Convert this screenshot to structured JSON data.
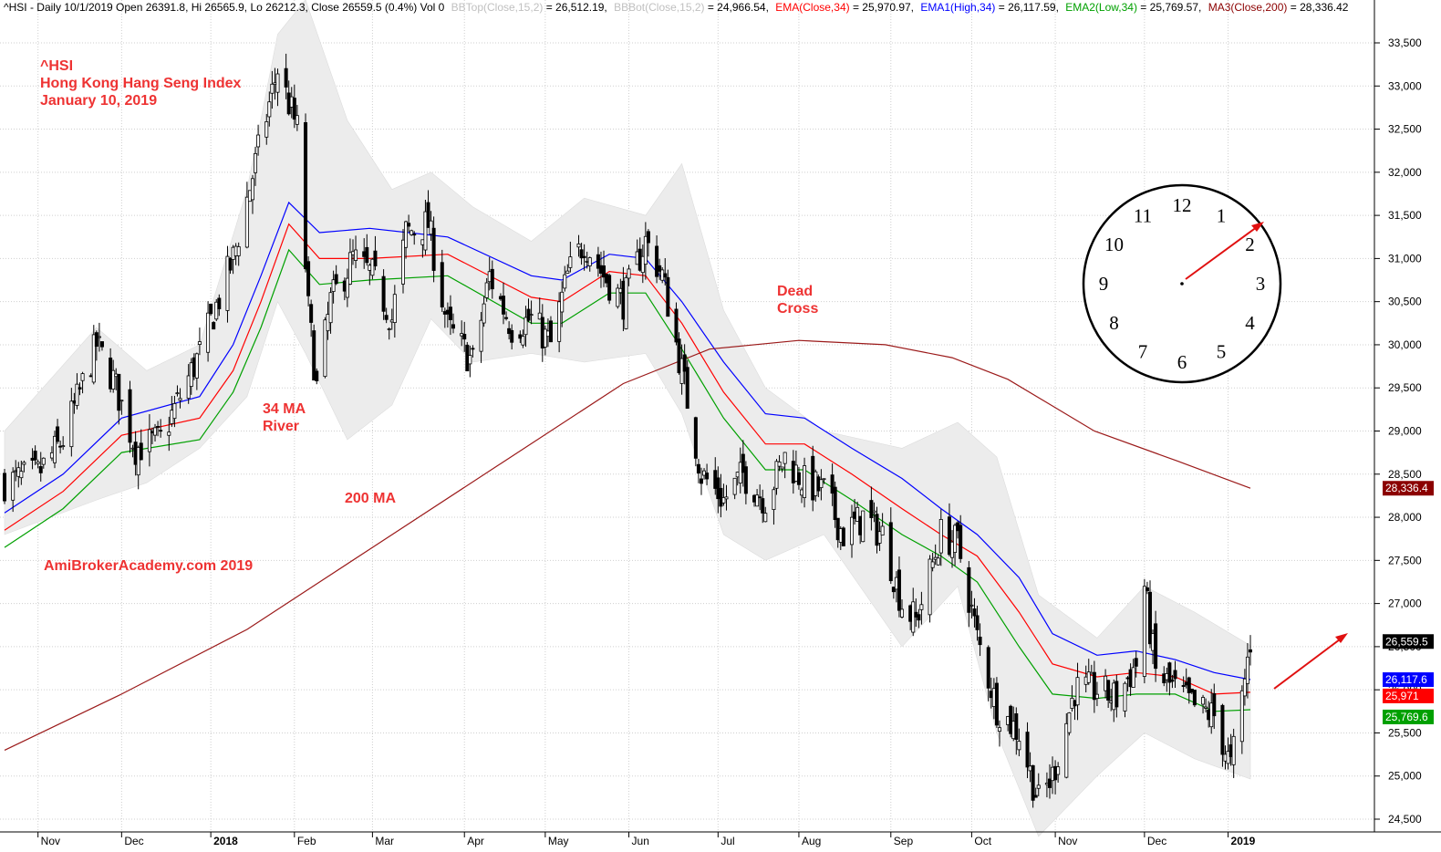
{
  "header": {
    "symbol_line": "^HSI - Daily 10/1/2019 Open 26391.8, Hi 26565.9, Lo 26212.3, Close 26559.5 (0.4%) Vol 0",
    "bbtop": "BBTop(Close,15,2)",
    "bbtop_value": " = 26,512.19,",
    "bbbot": "BBBot(Close,15,2)",
    "bbbot_value": " = 24,966.54,",
    "ema": "EMA(Close,34)",
    "ema_value": " = 25,970.97,",
    "ema1": "EMA1(High,34)",
    "ema1_value": " = 26,117.59,",
    "ema2": "EMA2(Low,34)",
    "ema2_value": " = 25,769.57,",
    "ma3": "MA3(Close,200)",
    "ma3_value": " = 28,336.42"
  },
  "annotations": {
    "title_line1": "^HSI",
    "title_line2": "Hong Kong Hang Seng Index",
    "title_line3": "January 10, 2019",
    "ma34_line1": "34 MA",
    "ma34_line2": "River",
    "ma200": "200 MA",
    "dead_line1": "Dead",
    "dead_line2": "Cross",
    "watermark": "AmiBrokerAcademy.com  2019"
  },
  "clock": {
    "numbers": [
      "12",
      "1",
      "2",
      "3",
      "4",
      "5",
      "6",
      "7",
      "8",
      "9",
      "10",
      "11"
    ],
    "minute_hand_points_to": "2"
  },
  "price_tags": [
    {
      "label": "28,336.4",
      "value": 28336.42,
      "color": "#8b0000"
    },
    {
      "label": "26,559.5",
      "value": 26559.5,
      "color": "#000000"
    },
    {
      "label": "26,117.6",
      "value": 26117.59,
      "color": "#0000ff"
    },
    {
      "label": "25,971",
      "value": 25970.97,
      "color": "#ff0000"
    },
    {
      "label": "25,769.6",
      "value": 25769.57,
      "color": "#00a000"
    }
  ],
  "colors": {
    "ema1": "#0000ff",
    "ema": "#ff0000",
    "ema2": "#00a000",
    "ma200": "#9b1a1a",
    "band": "#ececec",
    "annotation": "#ee3333",
    "candle": "#000000"
  },
  "chart_data": {
    "type": "line",
    "subtype": "candlestick with indicator overlays",
    "ylim": [
      24300,
      33800
    ],
    "y_ticks": [
      24500,
      25000,
      25500,
      26000,
      26500,
      27000,
      27500,
      28000,
      28500,
      29000,
      29500,
      30000,
      30500,
      31000,
      31500,
      32000,
      32500,
      33000,
      33500
    ],
    "y_tick_labels": [
      "24,500",
      "25,000",
      "25,500",
      "26,000",
      "26,500",
      "27,000",
      "27,500",
      "28,000",
      "28,500",
      "29,000",
      "29,500",
      "30,000",
      "30,500",
      "31,000",
      "31,500",
      "32,000",
      "32,500",
      "33,000",
      "33,500"
    ],
    "x_ticks": [
      {
        "label": "Nov",
        "bold": false
      },
      {
        "label": "Dec",
        "bold": false
      },
      {
        "label": "2018",
        "bold": true
      },
      {
        "label": "Feb",
        "bold": false
      },
      {
        "label": "Mar",
        "bold": false
      },
      {
        "label": "Apr",
        "bold": false
      },
      {
        "label": "May",
        "bold": false
      },
      {
        "label": "Jun",
        "bold": false
      },
      {
        "label": "Jul",
        "bold": false
      },
      {
        "label": "Aug",
        "bold": false
      },
      {
        "label": "Sep",
        "bold": false
      },
      {
        "label": "Oct",
        "bold": false
      },
      {
        "label": "Nov",
        "bold": false
      },
      {
        "label": "Dec",
        "bold": false
      },
      {
        "label": "2019",
        "bold": true
      }
    ],
    "grid": true,
    "close_path": [
      [
        "2017-10-20",
        28400
      ],
      [
        "2017-11-01",
        28500
      ],
      [
        "2017-11-10",
        28900
      ],
      [
        "2017-11-22",
        30000
      ],
      [
        "2017-11-28",
        29600
      ],
      [
        "2017-12-06",
        28800
      ],
      [
        "2017-12-15",
        28900
      ],
      [
        "2017-12-29",
        29900
      ],
      [
        "2018-01-10",
        31000
      ],
      [
        "2018-01-18",
        32100
      ],
      [
        "2018-01-26",
        33200
      ],
      [
        "2018-01-30",
        32800
      ],
      [
        "2018-02-02",
        32500
      ],
      [
        "2018-02-06",
        30400
      ],
      [
        "2018-02-09",
        29500
      ],
      [
        "2018-02-14",
        30500
      ],
      [
        "2018-02-22",
        31000
      ],
      [
        "2018-03-01",
        30800
      ],
      [
        "2018-03-08",
        30300
      ],
      [
        "2018-03-13",
        31300
      ],
      [
        "2018-03-21",
        31400
      ],
      [
        "2018-03-28",
        30200
      ],
      [
        "2018-04-06",
        29800
      ],
      [
        "2018-04-12",
        30800
      ],
      [
        "2018-04-20",
        30200
      ],
      [
        "2018-04-27",
        30300
      ],
      [
        "2018-05-04",
        30000
      ],
      [
        "2018-05-10",
        30800
      ],
      [
        "2018-05-16",
        31200
      ],
      [
        "2018-05-23",
        30800
      ],
      [
        "2018-05-30",
        30500
      ],
      [
        "2018-06-07",
        31200
      ],
      [
        "2018-06-13",
        30800
      ],
      [
        "2018-06-20",
        29700
      ],
      [
        "2018-06-27",
        28500
      ],
      [
        "2018-07-05",
        28200
      ],
      [
        "2018-07-12",
        28500
      ],
      [
        "2018-07-20",
        28200
      ],
      [
        "2018-07-27",
        28700
      ],
      [
        "2018-08-03",
        28400
      ],
      [
        "2018-08-10",
        28300
      ],
      [
        "2018-08-17",
        27800
      ],
      [
        "2018-08-24",
        28000
      ],
      [
        "2018-08-31",
        27800
      ],
      [
        "2018-09-07",
        27000
      ],
      [
        "2018-09-12",
        26800
      ],
      [
        "2018-09-21",
        27800
      ],
      [
        "2018-09-27",
        27700
      ],
      [
        "2018-10-04",
        26600
      ],
      [
        "2018-10-11",
        25800
      ],
      [
        "2018-10-19",
        25500
      ],
      [
        "2018-10-26",
        24700
      ],
      [
        "2018-10-31",
        25000
      ],
      [
        "2018-11-08",
        26000
      ],
      [
        "2018-11-16",
        26000
      ],
      [
        "2018-11-23",
        25900
      ],
      [
        "2018-11-30",
        26300
      ],
      [
        "2018-12-03",
        27200
      ],
      [
        "2018-12-07",
        26200
      ],
      [
        "2018-12-14",
        26000
      ],
      [
        "2018-12-21",
        25800
      ],
      [
        "2018-12-28",
        25700
      ],
      [
        "2019-01-03",
        25100
      ],
      [
        "2019-01-07",
        25900
      ],
      [
        "2019-01-10",
        26559.5
      ]
    ],
    "series": [
      {
        "name": "EMA1(High,34)",
        "points": [
          [
            "2017-10-20",
            28050
          ],
          [
            "2017-11-10",
            28500
          ],
          [
            "2017-12-01",
            29150
          ],
          [
            "2017-12-29",
            29400
          ],
          [
            "2018-01-10",
            30000
          ],
          [
            "2018-01-20",
            30800
          ],
          [
            "2018-01-30",
            31650
          ],
          [
            "2018-02-10",
            31300
          ],
          [
            "2018-02-28",
            31350
          ],
          [
            "2018-03-28",
            31250
          ],
          [
            "2018-04-27",
            30800
          ],
          [
            "2018-05-08",
            30750
          ],
          [
            "2018-05-25",
            31050
          ],
          [
            "2018-06-07",
            31000
          ],
          [
            "2018-06-20",
            30500
          ],
          [
            "2018-07-05",
            29800
          ],
          [
            "2018-07-20",
            29200
          ],
          [
            "2018-08-03",
            29150
          ],
          [
            "2018-08-20",
            28800
          ],
          [
            "2018-09-07",
            28450
          ],
          [
            "2018-09-21",
            28100
          ],
          [
            "2018-10-04",
            27800
          ],
          [
            "2018-10-19",
            27300
          ],
          [
            "2018-10-31",
            26650
          ],
          [
            "2018-11-16",
            26400
          ],
          [
            "2018-11-30",
            26450
          ],
          [
            "2018-12-14",
            26350
          ],
          [
            "2018-12-28",
            26200
          ],
          [
            "2019-01-10",
            26117.59
          ]
        ]
      },
      {
        "name": "EMA(Close,34)",
        "points": [
          [
            "2017-10-20",
            27850
          ],
          [
            "2017-11-10",
            28300
          ],
          [
            "2017-12-01",
            28950
          ],
          [
            "2017-12-29",
            29150
          ],
          [
            "2018-01-10",
            29700
          ],
          [
            "2018-01-20",
            30500
          ],
          [
            "2018-01-30",
            31400
          ],
          [
            "2018-02-10",
            31000
          ],
          [
            "2018-02-28",
            31000
          ],
          [
            "2018-03-28",
            31050
          ],
          [
            "2018-04-27",
            30550
          ],
          [
            "2018-05-08",
            30500
          ],
          [
            "2018-05-25",
            30850
          ],
          [
            "2018-06-07",
            30800
          ],
          [
            "2018-06-20",
            30250
          ],
          [
            "2018-07-05",
            29450
          ],
          [
            "2018-07-20",
            28850
          ],
          [
            "2018-08-03",
            28850
          ],
          [
            "2018-08-20",
            28500
          ],
          [
            "2018-09-07",
            28100
          ],
          [
            "2018-09-21",
            27800
          ],
          [
            "2018-10-04",
            27550
          ],
          [
            "2018-10-19",
            26900
          ],
          [
            "2018-10-31",
            26300
          ],
          [
            "2018-11-16",
            26150
          ],
          [
            "2018-11-30",
            26200
          ],
          [
            "2018-12-14",
            26150
          ],
          [
            "2018-12-28",
            25950
          ],
          [
            "2019-01-10",
            25970.97
          ]
        ]
      },
      {
        "name": "EMA2(Low,34)",
        "points": [
          [
            "2017-10-20",
            27650
          ],
          [
            "2017-11-10",
            28100
          ],
          [
            "2017-12-01",
            28750
          ],
          [
            "2017-12-29",
            28900
          ],
          [
            "2018-01-10",
            29450
          ],
          [
            "2018-01-20",
            30200
          ],
          [
            "2018-01-30",
            31100
          ],
          [
            "2018-02-10",
            30700
          ],
          [
            "2018-02-28",
            30750
          ],
          [
            "2018-03-28",
            30800
          ],
          [
            "2018-04-27",
            30250
          ],
          [
            "2018-05-08",
            30250
          ],
          [
            "2018-05-25",
            30600
          ],
          [
            "2018-06-07",
            30600
          ],
          [
            "2018-06-20",
            29950
          ],
          [
            "2018-07-05",
            29150
          ],
          [
            "2018-07-20",
            28550
          ],
          [
            "2018-08-03",
            28550
          ],
          [
            "2018-08-20",
            28200
          ],
          [
            "2018-09-07",
            27800
          ],
          [
            "2018-09-21",
            27550
          ],
          [
            "2018-10-04",
            27250
          ],
          [
            "2018-10-19",
            26500
          ],
          [
            "2018-10-31",
            25950
          ],
          [
            "2018-11-16",
            25900
          ],
          [
            "2018-11-30",
            25950
          ],
          [
            "2018-12-14",
            25950
          ],
          [
            "2018-12-28",
            25750
          ],
          [
            "2019-01-10",
            25769.57
          ]
        ]
      },
      {
        "name": "MA3(Close,200)",
        "points": [
          [
            "2017-10-20",
            25300
          ],
          [
            "2017-12-01",
            25950
          ],
          [
            "2018-01-15",
            26700
          ],
          [
            "2018-03-01",
            27650
          ],
          [
            "2018-04-15",
            28600
          ],
          [
            "2018-05-30",
            29550
          ],
          [
            "2018-06-30",
            29950
          ],
          [
            "2018-08-01",
            30050
          ],
          [
            "2018-09-01",
            30000
          ],
          [
            "2018-09-25",
            29850
          ],
          [
            "2018-10-15",
            29600
          ],
          [
            "2018-11-15",
            29000
          ],
          [
            "2018-12-15",
            28650
          ],
          [
            "2019-01-10",
            28336.42
          ]
        ]
      },
      {
        "name": "BBTop(Close,15,2)",
        "points": [
          [
            "2017-10-20",
            29000
          ],
          [
            "2017-11-22",
            30200
          ],
          [
            "2017-12-10",
            29700
          ],
          [
            "2017-12-29",
            30000
          ],
          [
            "2018-01-15",
            31800
          ],
          [
            "2018-01-26",
            33600
          ],
          [
            "2018-02-05",
            34000
          ],
          [
            "2018-02-20",
            32600
          ],
          [
            "2018-03-08",
            31800
          ],
          [
            "2018-03-22",
            32000
          ],
          [
            "2018-04-06",
            31600
          ],
          [
            "2018-04-27",
            31200
          ],
          [
            "2018-05-16",
            31700
          ],
          [
            "2018-06-07",
            31500
          ],
          [
            "2018-06-20",
            32100
          ],
          [
            "2018-07-05",
            30400
          ],
          [
            "2018-07-20",
            29500
          ],
          [
            "2018-08-10",
            29000
          ],
          [
            "2018-09-07",
            28800
          ],
          [
            "2018-09-27",
            29100
          ],
          [
            "2018-10-11",
            28700
          ],
          [
            "2018-10-26",
            27100
          ],
          [
            "2018-11-16",
            26600
          ],
          [
            "2018-12-03",
            27200
          ],
          [
            "2018-12-21",
            26900
          ],
          [
            "2019-01-10",
            26512.19
          ]
        ]
      },
      {
        "name": "BBBot(Close,15,2)",
        "points": [
          [
            "2017-10-20",
            27800
          ],
          [
            "2017-11-22",
            28200
          ],
          [
            "2017-12-10",
            28400
          ],
          [
            "2017-12-29",
            28800
          ],
          [
            "2018-01-15",
            29400
          ],
          [
            "2018-01-26",
            30500
          ],
          [
            "2018-02-05",
            29900
          ],
          [
            "2018-02-20",
            28900
          ],
          [
            "2018-03-08",
            29300
          ],
          [
            "2018-03-22",
            30300
          ],
          [
            "2018-04-06",
            29800
          ],
          [
            "2018-04-27",
            29900
          ],
          [
            "2018-05-16",
            29800
          ],
          [
            "2018-06-07",
            29900
          ],
          [
            "2018-06-20",
            29200
          ],
          [
            "2018-07-05",
            27800
          ],
          [
            "2018-07-20",
            27500
          ],
          [
            "2018-08-10",
            27800
          ],
          [
            "2018-09-07",
            26500
          ],
          [
            "2018-09-27",
            27200
          ],
          [
            "2018-10-11",
            25500
          ],
          [
            "2018-10-26",
            24300
          ],
          [
            "2018-11-16",
            25000
          ],
          [
            "2018-12-03",
            25500
          ],
          [
            "2018-12-21",
            25200
          ],
          [
            "2019-01-10",
            24966.54
          ]
        ]
      }
    ]
  }
}
